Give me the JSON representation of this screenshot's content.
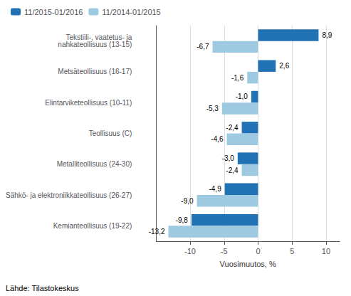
{
  "chart_data": {
    "type": "bar",
    "orientation": "horizontal",
    "categories": [
      "Tekstiili-, vaatetus- ja\nnahkateollisuus (13-15)",
      "Metsäteollisuus (16-17)",
      "Elintarviketeollisuus (10-11)",
      "Teollisuus (C)",
      "Metalliteollisuus (24-30)",
      "Sähkö- ja elektroniikkateollisuus (26-27)",
      "Kemianteollisuus (19-22)"
    ],
    "series": [
      {
        "name": "11/2015-01/2016",
        "color": "#2171b5",
        "values": [
          8.9,
          2.6,
          -1.0,
          -2.4,
          -3.0,
          -4.9,
          -9.8
        ],
        "value_labels": [
          "8,9",
          "2,6",
          "-1,0",
          "-2,4",
          "-3,0",
          "-4,9",
          "-9,8"
        ]
      },
      {
        "name": "11/2014-01/2015",
        "color": "#9ecae1",
        "values": [
          -6.7,
          -1.6,
          -5.3,
          -4.6,
          -2.4,
          -9.0,
          -13.2
        ],
        "value_labels": [
          "-6,7",
          "-1,6",
          "-5,3",
          "-4,6",
          "-2,4",
          "-9,0",
          "-13,2"
        ]
      }
    ],
    "xlabel": "Vuosimuutos, %",
    "xlim": [
      -15,
      12
    ],
    "xticks": [
      -10,
      -5,
      0,
      5,
      10
    ],
    "grid": true,
    "legend": "upper left",
    "data_labels": true,
    "annotations": [
      "Lähde: Tilastokeskus"
    ]
  }
}
